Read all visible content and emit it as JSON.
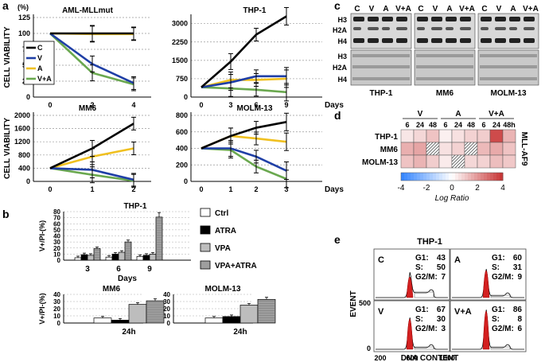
{
  "panel_labels": {
    "a": "a",
    "b": "b",
    "c": "c",
    "d": "d",
    "e": "e"
  },
  "colors": {
    "C": "#000000",
    "V": "#1f3fa6",
    "A": "#f0c020",
    "VA": "#6aa84f",
    "red": "#d32020",
    "ctrl": "#ffffff",
    "atra": "#000000",
    "vpa": "#bdbdbd",
    "vpaatra": "#9e9e9e"
  },
  "chart_data": [
    {
      "type": "line",
      "id": "aml",
      "title": "AML-MLLmut",
      "unit_label": "(%)",
      "ylabel": "CELL VIABILITY",
      "ylim": [
        0,
        125
      ],
      "yticks": [
        "0",
        "25",
        "50",
        "75",
        "100",
        "125"
      ],
      "x": [
        0,
        2,
        4
      ],
      "xticks": [
        "0",
        "2",
        "4"
      ],
      "series": [
        {
          "name": "C",
          "values": [
            100,
            100,
            100
          ]
        },
        {
          "name": "V",
          "values": [
            100,
            52,
            22
          ]
        },
        {
          "name": "A",
          "values": [
            100,
            99,
            99
          ]
        },
        {
          "name": "V+A",
          "values": [
            100,
            38,
            20
          ]
        }
      ],
      "legend": [
        "C",
        "V",
        "A",
        "V+A"
      ]
    },
    {
      "type": "line",
      "id": "thp1",
      "title": "THP-1",
      "ylim": [
        0,
        3250
      ],
      "yticks": [
        "0",
        "750",
        "1500",
        "2250",
        "3000"
      ],
      "x": [
        0,
        3,
        6,
        9
      ],
      "xticks": [
        "0",
        "3",
        "6",
        "9"
      ],
      "xlabel": "Days",
      "series": [
        {
          "name": "C",
          "values": [
            400,
            1450,
            2550,
            3300
          ]
        },
        {
          "name": "V",
          "values": [
            400,
            600,
            850,
            850
          ]
        },
        {
          "name": "A",
          "values": [
            400,
            700,
            700,
            750
          ]
        },
        {
          "name": "V+A",
          "values": [
            400,
            350,
            300,
            200
          ]
        }
      ]
    },
    {
      "type": "line",
      "id": "mm6",
      "title": "MM6",
      "ylabel": "CELL VIABILITY",
      "ylim": [
        0,
        2000
      ],
      "yticks": [
        "0",
        "400",
        "800",
        "1200",
        "1600",
        "2000"
      ],
      "x": [
        0,
        1,
        2
      ],
      "xticks": [
        "0",
        "1",
        "2"
      ],
      "series": [
        {
          "name": "C",
          "values": [
            400,
            1000,
            1750
          ]
        },
        {
          "name": "V",
          "values": [
            400,
            350,
            50
          ]
        },
        {
          "name": "A",
          "values": [
            400,
            750,
            1000
          ]
        },
        {
          "name": "V+A",
          "values": [
            400,
            200,
            20
          ]
        }
      ]
    },
    {
      "type": "line",
      "id": "molm13",
      "title": "MOLM-13",
      "ylim": [
        0,
        800
      ],
      "yticks": [
        "0",
        "200",
        "400",
        "600",
        "800"
      ],
      "x": [
        0,
        1,
        2,
        3
      ],
      "xticks": [
        "0",
        "1",
        "2",
        "3"
      ],
      "xlabel": "Days",
      "series": [
        {
          "name": "C",
          "values": [
            400,
            550,
            650,
            720
          ]
        },
        {
          "name": "V",
          "values": [
            400,
            400,
            300,
            130
          ]
        },
        {
          "name": "A",
          "values": [
            400,
            550,
            520,
            480
          ]
        },
        {
          "name": "V+A",
          "values": [
            400,
            380,
            180,
            30
          ]
        }
      ]
    },
    {
      "type": "bar",
      "id": "thp1bar",
      "title": "THP-1",
      "ylabel": "V+/PI-(%)",
      "ylim": [
        0,
        80
      ],
      "yticks": [
        "0",
        "10",
        "20",
        "30",
        "40",
        "50",
        "60",
        "70",
        "80"
      ],
      "categories": [
        "3",
        "6",
        "9"
      ],
      "xlabel": "Days",
      "series": [
        {
          "name": "Ctrl",
          "values": [
            4,
            5,
            6
          ]
        },
        {
          "name": "ATRA",
          "values": [
            9,
            10,
            8
          ]
        },
        {
          "name": "VPA",
          "values": [
            8,
            13,
            10
          ]
        },
        {
          "name": "VPA+ATRA",
          "values": [
            19,
            30,
            71
          ]
        }
      ]
    },
    {
      "type": "bar",
      "id": "mm6bar",
      "title": "MM6",
      "ylabel": "V+/PI-(%)",
      "ylim": [
        0,
        40
      ],
      "yticks": [
        "0",
        "10",
        "20",
        "30",
        "40"
      ],
      "categories": [
        "24h"
      ],
      "series": [
        {
          "name": "Ctrl",
          "values": [
            7
          ]
        },
        {
          "name": "ATRA",
          "values": [
            4
          ]
        },
        {
          "name": "VPA",
          "values": [
            26
          ]
        },
        {
          "name": "VPA+ATRA",
          "values": [
            31
          ]
        }
      ]
    },
    {
      "type": "bar",
      "id": "molmbar",
      "title": "MOLM-13",
      "ylim": [
        0,
        40
      ],
      "yticks": [
        "0",
        "10",
        "20",
        "30",
        "40"
      ],
      "categories": [
        "24h"
      ],
      "series": [
        {
          "name": "Ctrl",
          "values": [
            7
          ]
        },
        {
          "name": "ATRA",
          "values": [
            9
          ]
        },
        {
          "name": "VPA",
          "values": [
            25
          ]
        },
        {
          "name": "VPA+ATRA",
          "values": [
            33
          ]
        }
      ]
    },
    {
      "type": "heatmap",
      "id": "heat",
      "title": "MLL-AF9",
      "groups": [
        "V",
        "A",
        "V+A"
      ],
      "timepoints": [
        "6",
        "24",
        "48",
        "6",
        "24",
        "48",
        "6",
        "24",
        "48h"
      ],
      "rows": [
        "THP-1",
        "MM6",
        "MOLM-13"
      ],
      "values": [
        [
          0.5,
          0.8,
          1.2,
          0.3,
          0.6,
          0.9,
          1.0,
          3.6,
          1.5
        ],
        [
          1.6,
          1.8,
          null,
          0.6,
          0.9,
          null,
          1.4,
          1.7,
          1.2
        ],
        [
          1.2,
          1.5,
          1.0,
          0.4,
          null,
          0.8,
          0.9,
          1.3,
          1.1
        ]
      ],
      "colorbar": {
        "ticks": [
          "-4",
          "-2",
          "0",
          "2",
          "4"
        ],
        "label": "Log Ratio",
        "range": [
          -4,
          4
        ]
      }
    }
  ],
  "blot": {
    "lanes": [
      "C",
      "V",
      "A",
      "V+A"
    ],
    "bands_top": [
      "H3",
      "H2A",
      "H4"
    ],
    "bands_bottom": [
      "H3",
      "H2A",
      "H4"
    ],
    "cells": [
      "THP-1",
      "MM6",
      "MOLM-13"
    ]
  },
  "flow": {
    "title": "THP-1",
    "ylabel": "EVENT",
    "xlabel": "DNA CONTENT",
    "yticks": [
      "0",
      "500"
    ],
    "xticks": [
      "200",
      "600",
      "1000"
    ],
    "panels": [
      {
        "label": "C",
        "g1_label": "G1:",
        "g1": "43",
        "s_label": "S:",
        "s": "50",
        "g2_label": "G2/M:",
        "g2": "7"
      },
      {
        "label": "A",
        "g1_label": "G1:",
        "g1": "60",
        "s_label": "S:",
        "s": "31",
        "g2_label": "G2/M:",
        "g2": "9"
      },
      {
        "label": "V",
        "g1_label": "G1:",
        "g1": "67",
        "s_label": "S:",
        "s": "30",
        "g2_label": "G2/M:",
        "g2": "3"
      },
      {
        "label": "V+A",
        "g1_label": "G1:",
        "g1": "86",
        "s_label": "S:",
        "s": "8",
        "g2_label": "G2/M:",
        "g2": "6"
      }
    ]
  },
  "legend_b": [
    "Ctrl",
    "ATRA",
    "VPA",
    "VPA+ATRA"
  ]
}
